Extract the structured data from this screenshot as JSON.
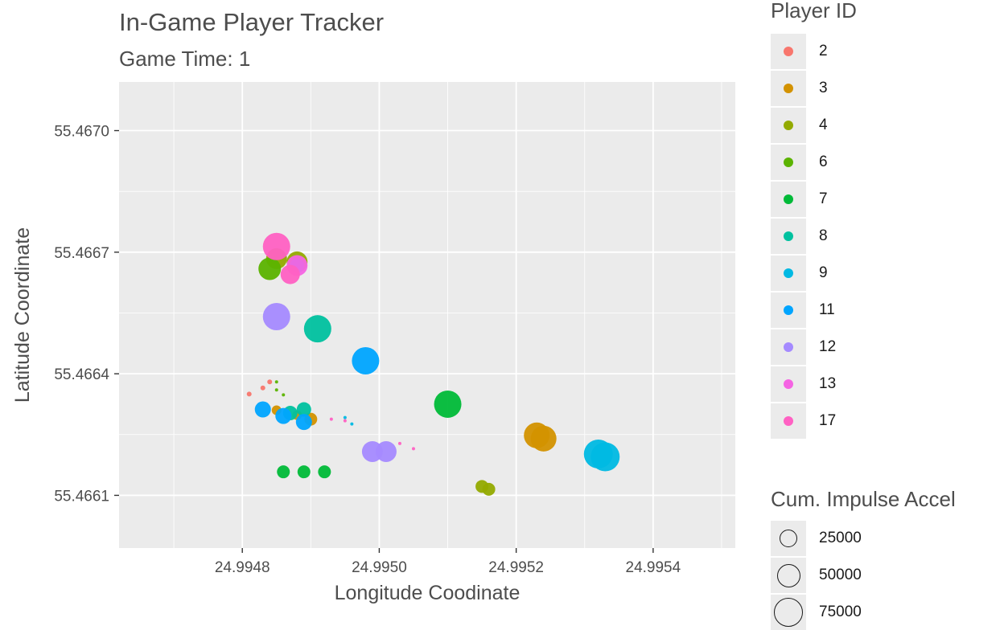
{
  "title": "In-Game Player Tracker",
  "subtitle": "Game Time: 1",
  "chart_data": {
    "type": "scatter",
    "xlabel": "Longitude Coodinate",
    "ylabel": "Latitude Coordinate",
    "xlim": [
      24.99462,
      24.99552
    ],
    "ylim": [
      55.46597,
      55.46712
    ],
    "x_ticks": [
      24.9948,
      24.995,
      24.9952,
      24.9954
    ],
    "x_tick_labels": [
      "24.9948",
      "24.9950",
      "24.9952",
      "24.9954"
    ],
    "y_ticks": [
      55.4661,
      55.4664,
      55.4667,
      55.467
    ],
    "y_tick_labels": [
      "55.4661",
      "55.4664",
      "55.4667",
      "55.4670"
    ],
    "grid": true,
    "color_legend": {
      "title": "Player ID",
      "entries": [
        {
          "label": "2",
          "color": "#F8766D"
        },
        {
          "label": "3",
          "color": "#D39200"
        },
        {
          "label": "4",
          "color": "#93AA00"
        },
        {
          "label": "6",
          "color": "#5BB300"
        },
        {
          "label": "7",
          "color": "#00BA38"
        },
        {
          "label": "8",
          "color": "#00C19F"
        },
        {
          "label": "9",
          "color": "#00B9E3"
        },
        {
          "label": "11",
          "color": "#00A5FF"
        },
        {
          "label": "12",
          "color": "#A58AFF"
        },
        {
          "label": "13",
          "color": "#F564E3"
        },
        {
          "label": "17",
          "color": "#FF61C3"
        }
      ]
    },
    "size_legend": {
      "title": "Cum. Impulse Accel",
      "entries": [
        "25000",
        "50000",
        "75000"
      ],
      "ring_sizes": [
        22,
        29,
        36
      ]
    },
    "series": [
      {
        "name": "2",
        "color": "#F8766D",
        "points": [
          {
            "x": 24.99481,
            "y": 55.46635,
            "size": 3
          },
          {
            "x": 24.99483,
            "y": 55.466365,
            "size": 3
          },
          {
            "x": 24.99484,
            "y": 55.46638,
            "size": 3
          }
        ]
      },
      {
        "name": "3",
        "color": "#D39200",
        "points": [
          {
            "x": 24.99485,
            "y": 55.46631,
            "size": 6
          },
          {
            "x": 24.99488,
            "y": 55.466298,
            "size": 6
          },
          {
            "x": 24.9949,
            "y": 55.466288,
            "size": 8
          },
          {
            "x": 24.99523,
            "y": 55.466248,
            "size": 16
          },
          {
            "x": 24.99524,
            "y": 55.46624,
            "size": 16
          }
        ]
      },
      {
        "name": "4",
        "color": "#93AA00",
        "points": [
          {
            "x": 24.99485,
            "y": 55.466684,
            "size": 13
          },
          {
            "x": 24.99488,
            "y": 55.466676,
            "size": 13
          },
          {
            "x": 24.99515,
            "y": 55.466122,
            "size": 8
          },
          {
            "x": 24.99516,
            "y": 55.466115,
            "size": 8
          }
        ]
      },
      {
        "name": "6",
        "color": "#5BB300",
        "points": [
          {
            "x": 24.99484,
            "y": 55.466659,
            "size": 14
          },
          {
            "x": 24.99485,
            "y": 55.46638,
            "size": 2
          },
          {
            "x": 24.99485,
            "y": 55.46636,
            "size": 2
          },
          {
            "x": 24.99486,
            "y": 55.466348,
            "size": 2
          }
        ]
      },
      {
        "name": "7",
        "color": "#00BA38",
        "points": [
          {
            "x": 24.99486,
            "y": 55.466158,
            "size": 8
          },
          {
            "x": 24.99489,
            "y": 55.466158,
            "size": 8
          },
          {
            "x": 24.99492,
            "y": 55.466158,
            "size": 8
          },
          {
            "x": 24.9951,
            "y": 55.466325,
            "size": 17
          }
        ]
      },
      {
        "name": "8",
        "color": "#00C19F",
        "points": [
          {
            "x": 24.99487,
            "y": 55.466303,
            "size": 9
          },
          {
            "x": 24.99489,
            "y": 55.466312,
            "size": 9
          },
          {
            "x": 24.99491,
            "y": 55.466511,
            "size": 17
          }
        ]
      },
      {
        "name": "9",
        "color": "#00B9E3",
        "points": [
          {
            "x": 24.99488,
            "y": 55.466667,
            "size": 9
          },
          {
            "x": 24.99495,
            "y": 55.466292,
            "size": 2
          },
          {
            "x": 24.99496,
            "y": 55.466276,
            "size": 2
          },
          {
            "x": 24.99532,
            "y": 55.466202,
            "size": 18
          },
          {
            "x": 24.99533,
            "y": 55.466195,
            "size": 18
          }
        ]
      },
      {
        "name": "11",
        "color": "#00A5FF",
        "points": [
          {
            "x": 24.99483,
            "y": 55.466312,
            "size": 10
          },
          {
            "x": 24.99486,
            "y": 55.466296,
            "size": 10
          },
          {
            "x": 24.99489,
            "y": 55.466281,
            "size": 10
          },
          {
            "x": 24.99498,
            "y": 55.466432,
            "size": 17
          }
        ]
      },
      {
        "name": "12",
        "color": "#A58AFF",
        "points": [
          {
            "x": 24.99485,
            "y": 55.466541,
            "size": 17
          },
          {
            "x": 24.99499,
            "y": 55.466208,
            "size": 13
          },
          {
            "x": 24.99501,
            "y": 55.466208,
            "size": 13
          }
        ]
      },
      {
        "name": "13",
        "color": "#F564E3",
        "points": [
          {
            "x": 24.99488,
            "y": 55.466667,
            "size": 13
          }
        ]
      },
      {
        "name": "17",
        "color": "#FF61C3",
        "points": [
          {
            "x": 24.99485,
            "y": 55.466714,
            "size": 17
          },
          {
            "x": 24.99487,
            "y": 55.466645,
            "size": 12
          },
          {
            "x": 24.99493,
            "y": 55.466288,
            "size": 2
          },
          {
            "x": 24.99495,
            "y": 55.466284,
            "size": 2
          },
          {
            "x": 24.99503,
            "y": 55.466228,
            "size": 2
          },
          {
            "x": 24.99505,
            "y": 55.466215,
            "size": 2
          }
        ]
      }
    ]
  }
}
